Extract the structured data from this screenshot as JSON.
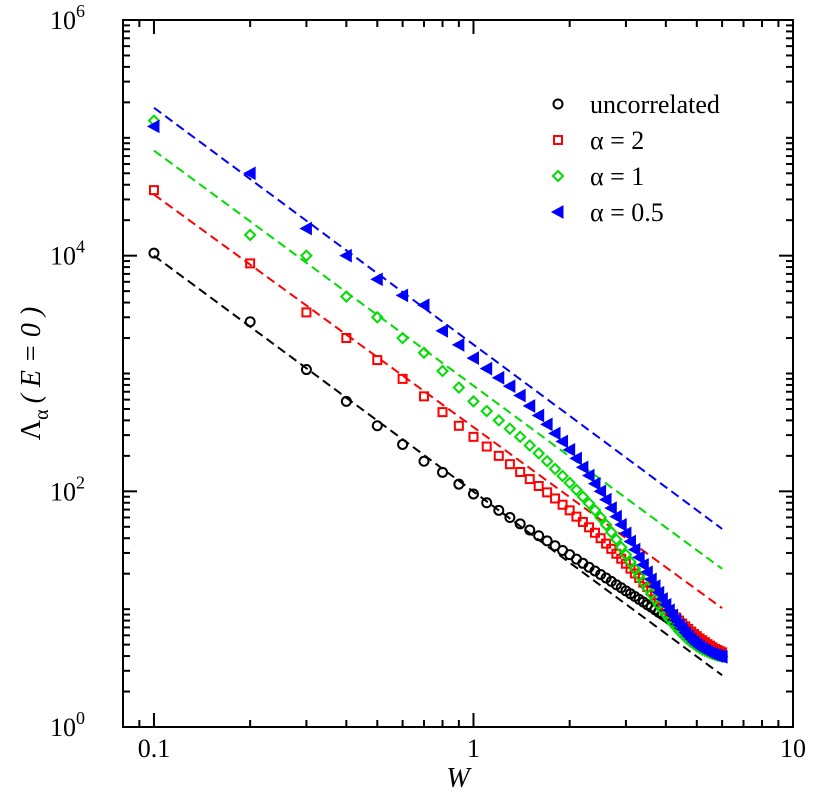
{
  "chart_data": {
    "type": "scatter",
    "xscale": "log",
    "yscale": "log",
    "xlim": [
      0.08,
      10
    ],
    "ylim": [
      1,
      1000000
    ],
    "xlabel": "W",
    "ylabel": "Λα ( E = 0 )",
    "ylabel_parts": {
      "main": "Λ",
      "sub": "α",
      "rest": "( E = 0 )"
    },
    "xticks": [
      {
        "value": 0.1,
        "label": "0.1"
      },
      {
        "value": 1,
        "label": "1"
      },
      {
        "value": 10,
        "label": "10"
      }
    ],
    "yticks": [
      {
        "value": 1,
        "base": "10",
        "exp": "0"
      },
      {
        "value": 100,
        "base": "10",
        "exp": "2"
      },
      {
        "value": 10000,
        "base": "10",
        "exp": "4"
      },
      {
        "value": 1000000,
        "base": "10",
        "exp": "6"
      }
    ],
    "legend_position": "top-right",
    "series": [
      {
        "name": "uncorrelated",
        "color": "#000000",
        "marker": "circle",
        "fit": {
          "x": [
            0.1,
            6.0
          ],
          "y": [
            10000,
            2.75
          ]
        },
        "x": [
          0.1,
          0.2,
          0.3,
          0.4,
          0.5,
          0.6,
          0.7,
          0.8,
          0.9,
          1.0,
          1.1,
          1.2,
          1.3,
          1.4,
          1.5,
          1.6,
          1.7,
          1.8,
          1.9,
          2.0,
          2.1,
          2.2,
          2.3,
          2.4,
          2.5,
          2.6,
          2.7,
          2.8,
          2.9,
          3.0,
          3.1,
          3.2,
          3.3,
          3.4,
          3.5,
          3.6,
          3.7,
          3.8,
          3.9,
          4.0,
          4.1,
          4.2,
          4.3,
          4.4,
          4.5,
          4.6,
          4.7,
          4.8,
          4.9,
          5.0,
          5.1,
          5.2,
          5.3,
          5.4,
          5.5,
          5.6,
          5.7,
          5.8,
          5.9,
          6.0
        ],
        "y": [
          10500,
          2750,
          1080,
          580,
          360,
          250,
          180,
          145,
          115,
          95,
          80,
          69,
          60,
          53,
          47,
          42,
          38,
          34.5,
          31.5,
          29,
          26.6,
          24.5,
          22.7,
          21.1,
          19.7,
          18.4,
          17.2,
          16.1,
          15.2,
          14.3,
          13.5,
          12.8,
          12.1,
          11.5,
          10.9,
          10.4,
          9.9,
          9.4,
          9.0,
          8.6,
          8.2,
          7.9,
          7.55,
          7.25,
          6.95,
          6.65,
          6.4,
          6.15,
          5.9,
          5.7,
          5.5,
          5.3,
          5.1,
          4.95,
          4.8,
          4.65,
          4.5,
          4.35,
          4.2,
          4.1
        ]
      },
      {
        "name": "α = 2",
        "color": "#ff0000",
        "marker": "square",
        "fit": {
          "x": [
            0.1,
            6.0
          ],
          "y": [
            33000,
            10.2
          ]
        },
        "x": [
          0.1,
          0.2,
          0.3,
          0.4,
          0.5,
          0.6,
          0.7,
          0.8,
          0.9,
          1.0,
          1.1,
          1.2,
          1.3,
          1.4,
          1.5,
          1.6,
          1.7,
          1.8,
          1.9,
          2.0,
          2.1,
          2.2,
          2.3,
          2.4,
          2.5,
          2.6,
          2.7,
          2.8,
          2.9,
          3.0,
          3.1,
          3.2,
          3.3,
          3.4,
          3.5,
          3.6,
          3.7,
          3.8,
          3.9,
          4.0,
          4.1,
          4.2,
          4.3,
          4.4,
          4.5,
          4.6,
          4.7,
          4.8,
          4.9,
          5.0,
          5.1,
          5.2,
          5.3,
          5.4,
          5.5,
          5.6,
          5.7,
          5.8,
          5.9,
          6.0
        ],
        "y": [
          36000,
          8600,
          3300,
          2000,
          1300,
          900,
          640,
          470,
          360,
          290,
          240,
          200,
          170,
          146,
          127,
          111,
          98,
          87,
          77,
          69,
          61,
          55,
          49.5,
          44.5,
          40,
          36,
          32.5,
          29.5,
          26.8,
          24.3,
          22.1,
          20.1,
          18.4,
          16.8,
          15.4,
          14.2,
          13.1,
          12.1,
          11.2,
          10.4,
          9.7,
          9.05,
          8.5,
          8.0,
          7.55,
          7.15,
          6.8,
          6.45,
          6.15,
          5.9,
          5.65,
          5.45,
          5.25,
          5.05,
          4.9,
          4.75,
          4.6,
          4.5,
          4.4,
          4.3
        ]
      },
      {
        "name": "α = 1",
        "color": "#00dd00",
        "marker": "diamond",
        "fit": {
          "x": [
            0.1,
            6.0
          ],
          "y": [
            78000,
            22
          ]
        },
        "x": [
          0.1,
          0.2,
          0.3,
          0.4,
          0.5,
          0.6,
          0.7,
          0.8,
          0.9,
          1.0,
          1.1,
          1.2,
          1.3,
          1.4,
          1.5,
          1.6,
          1.7,
          1.8,
          1.9,
          2.0,
          2.1,
          2.2,
          2.3,
          2.4,
          2.5,
          2.6,
          2.7,
          2.8,
          2.9,
          3.0,
          3.1,
          3.2,
          3.3,
          3.4,
          3.5,
          3.6,
          3.7,
          3.8,
          3.9,
          4.0,
          4.1,
          4.2,
          4.3,
          4.4,
          4.5,
          4.6,
          4.7,
          4.8,
          4.9,
          5.0,
          5.1,
          5.2,
          5.3,
          5.4,
          5.5,
          5.6,
          5.7,
          5.8,
          5.9,
          6.0
        ],
        "y": [
          140000,
          15000,
          10000,
          4500,
          3000,
          2000,
          1500,
          1050,
          760,
          580,
          480,
          400,
          340,
          290,
          245,
          210,
          180,
          155,
          135,
          118,
          103,
          90,
          79,
          69,
          60,
          52,
          45,
          39,
          33.5,
          29,
          25.2,
          22,
          19.3,
          17,
          15.1,
          13.5,
          12.1,
          10.9,
          9.9,
          9.0,
          8.25,
          7.6,
          7.05,
          6.55,
          6.15,
          5.8,
          5.5,
          5.25,
          5.05,
          4.85,
          4.7,
          4.55,
          4.45,
          4.35,
          4.25,
          4.17,
          4.1,
          4.05,
          4.0,
          3.95
        ]
      },
      {
        "name": "α = 0.5",
        "color": "#0000ff",
        "marker": "triangle-left",
        "fit": {
          "x": [
            0.1,
            6.0
          ],
          "y": [
            180000,
            48
          ]
        },
        "x": [
          0.1,
          0.2,
          0.3,
          0.4,
          0.5,
          0.6,
          0.7,
          0.8,
          0.9,
          1.0,
          1.1,
          1.2,
          1.3,
          1.4,
          1.5,
          1.6,
          1.7,
          1.8,
          1.9,
          2.0,
          2.1,
          2.2,
          2.3,
          2.4,
          2.5,
          2.6,
          2.7,
          2.8,
          2.9,
          3.0,
          3.1,
          3.2,
          3.3,
          3.4,
          3.5,
          3.6,
          3.7,
          3.8,
          3.9,
          4.0,
          4.1,
          4.2,
          4.3,
          4.4,
          4.5,
          4.6,
          4.7,
          4.8,
          4.9,
          5.0,
          5.1,
          5.2,
          5.3,
          5.4,
          5.5,
          5.6,
          5.7,
          5.8,
          5.9,
          6.0
        ],
        "y": [
          125000,
          50000,
          17000,
          10000,
          6300,
          4600,
          3800,
          2300,
          1750,
          1350,
          1100,
          920,
          780,
          650,
          530,
          440,
          370,
          310,
          265,
          225,
          190,
          160,
          136,
          116,
          100,
          85,
          72,
          61,
          52,
          44,
          37.5,
          32,
          27.5,
          23.8,
          20.6,
          17.9,
          15.7,
          13.8,
          12.2,
          10.9,
          9.8,
          8.85,
          8.05,
          7.35,
          6.8,
          6.3,
          5.9,
          5.55,
          5.25,
          5.0,
          4.8,
          4.62,
          4.48,
          4.35,
          4.25,
          4.16,
          4.09,
          4.03,
          3.98,
          3.93
        ]
      }
    ]
  }
}
